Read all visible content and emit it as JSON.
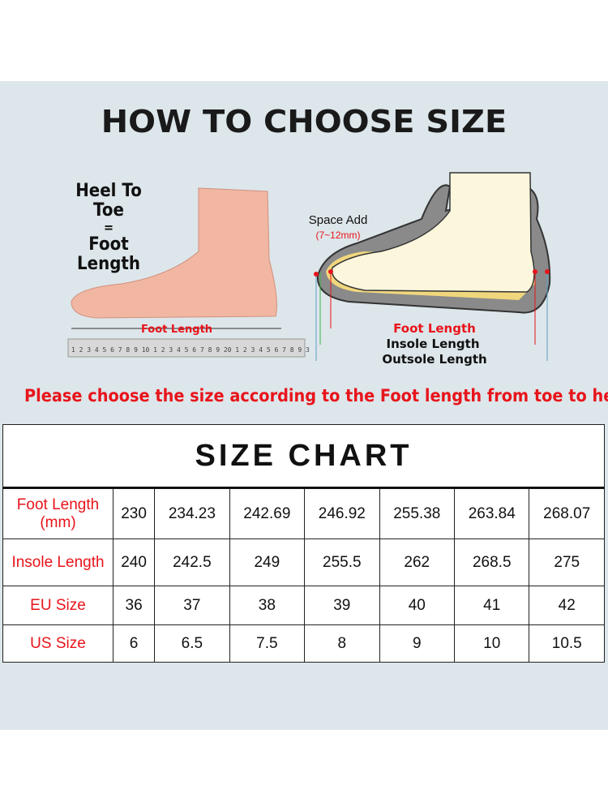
{
  "headline": "HOW TO CHOOSE SIZE",
  "left_diagram": {
    "caption_line1": "Heel To Toe",
    "caption_line2": "=",
    "caption_line3": "Foot Length",
    "ruler_label": "Foot Length",
    "ruler_digits": "1 2 3 4 5 6 7 8 9 10 1 2 3 4 5 6 7 8 9 20 1 2 3 4 5 6 7 8 9 3"
  },
  "right_diagram": {
    "space_add": "Space Add",
    "space_range": "(7~12mm)",
    "foot_length": "Foot Length",
    "insole_length": "Insole Length",
    "outsole_length": "Outsole Length"
  },
  "instruction": "Please  choose the size according to the Foot length from toe to heel",
  "colors": {
    "accent_red": "#e8141b",
    "panel_bg": "#dde6ea"
  },
  "size_chart": {
    "title": "SIZE CHART",
    "rows": [
      {
        "label": "Foot Length (mm)",
        "values": [
          "230",
          "234.23",
          "242.69",
          "246.92",
          "255.38",
          "263.84",
          "268.07"
        ]
      },
      {
        "label": "Insole Length",
        "values": [
          "240",
          "242.5",
          "249",
          "255.5",
          "262",
          "268.5",
          "275"
        ]
      },
      {
        "label": "EU Size",
        "values": [
          "36",
          "37",
          "38",
          "39",
          "40",
          "41",
          "42"
        ]
      },
      {
        "label": "US Size",
        "values": [
          "6",
          "6.5",
          "7.5",
          "8",
          "9",
          "10",
          "10.5"
        ]
      }
    ]
  }
}
